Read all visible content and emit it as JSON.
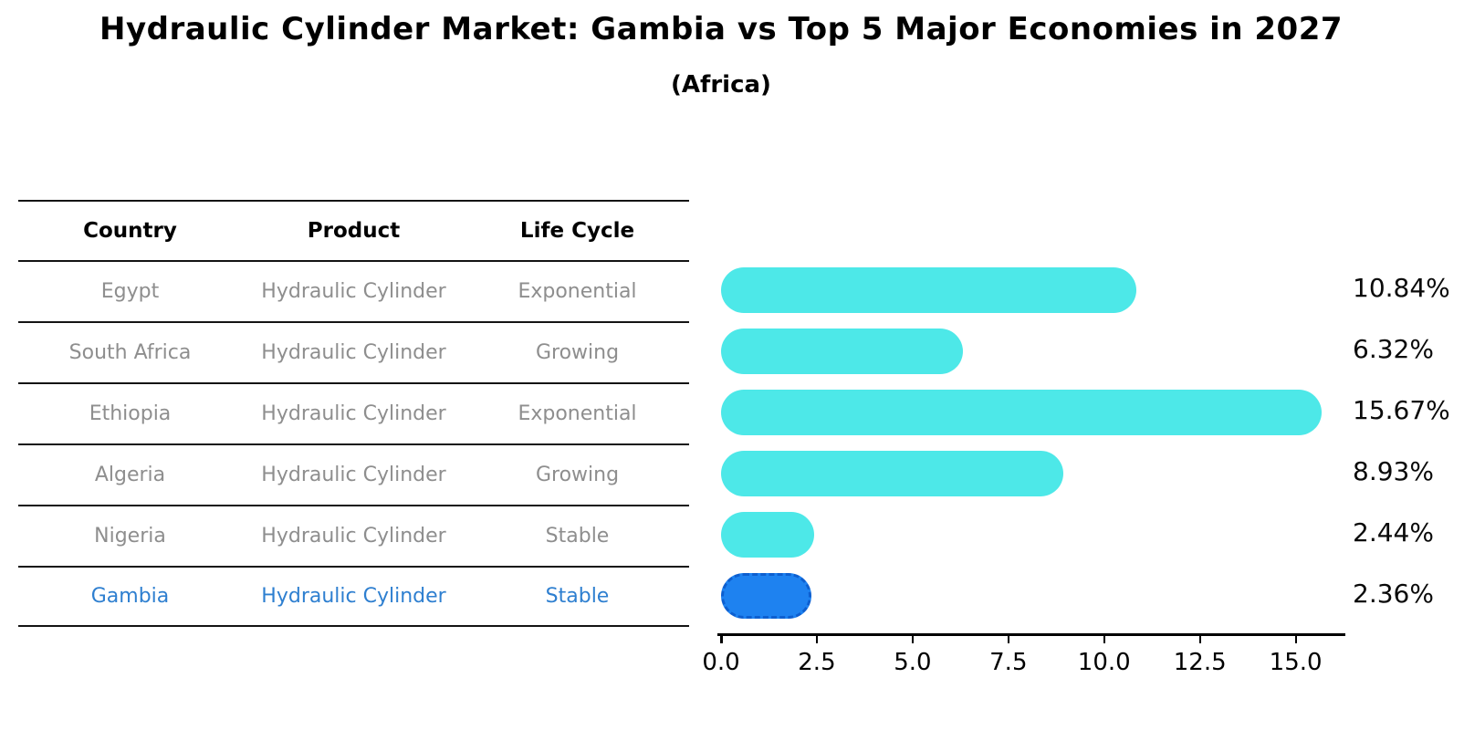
{
  "title": "Hydraulic Cylinder Market: Gambia vs Top 5 Major Economies in 2027",
  "subtitle": "(Africa)",
  "table": {
    "headers": [
      "Country",
      "Product",
      "Life Cycle"
    ],
    "rows": [
      {
        "country": "Egypt",
        "product": "Hydraulic Cylinder",
        "life_cycle": "Exponential",
        "highlight": false
      },
      {
        "country": "South Africa",
        "product": "Hydraulic Cylinder",
        "life_cycle": "Growing",
        "highlight": false
      },
      {
        "country": "Ethiopia",
        "product": "Hydraulic Cylinder",
        "life_cycle": "Exponential",
        "highlight": false
      },
      {
        "country": "Algeria",
        "product": "Hydraulic Cylinder",
        "life_cycle": "Growing",
        "highlight": false
      },
      {
        "country": "Nigeria",
        "product": "Hydraulic Cylinder",
        "life_cycle": "Stable",
        "highlight": false
      },
      {
        "country": "Gambia",
        "product": "Hydraulic Cylinder",
        "life_cycle": "Stable",
        "highlight": true
      }
    ]
  },
  "chart_data": {
    "type": "bar",
    "orientation": "horizontal",
    "title": "Hydraulic Cylinder Market: Gambia vs Top 5 Major Economies in 2027",
    "subtitle": "(Africa)",
    "categories": [
      "Egypt",
      "South Africa",
      "Ethiopia",
      "Algeria",
      "Nigeria",
      "Gambia"
    ],
    "values": [
      10.84,
      6.32,
      15.67,
      8.93,
      2.44,
      2.36
    ],
    "value_labels": [
      "10.84%",
      "6.32%",
      "15.67%",
      "8.93%",
      "2.44%",
      "2.36%"
    ],
    "xlabel": "",
    "ylabel": "",
    "xlim": [
      0,
      16.2
    ],
    "xtick_values": [
      0,
      2.5,
      5,
      7.5,
      10,
      12.5,
      15
    ],
    "xtick_labels": [
      "0.0",
      "2.5",
      "5.0",
      "7.5",
      "10.0",
      "12.5",
      "15.0"
    ],
    "grid": false,
    "legend": false,
    "bar_color": "#4DE8E8",
    "highlight_index": 5,
    "highlight_bar_color": "#1E82F0",
    "highlight_border_color": "#0d5fd0",
    "highlight_text_color": "#2e7fd0"
  }
}
